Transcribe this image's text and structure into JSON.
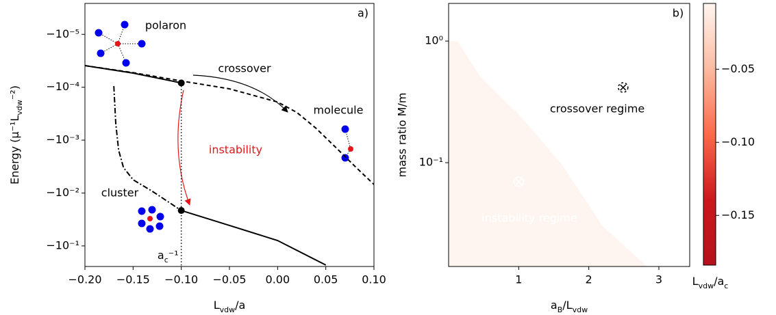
{
  "chart_data": [
    {
      "type": "line",
      "xlabel": [
        "L",
        "vdw",
        "/a"
      ],
      "ylabel": [
        "Energy (μ⁻¹L",
        "vdw",
        "⁻²)"
      ],
      "xlim": [
        -0.2,
        0.1
      ],
      "ylim": [
        -0.245,
        -2.6e-06
      ],
      "yscale": "log",
      "xticks": [
        {
          "value": -0.2,
          "label": "−0.20"
        },
        {
          "value": -0.15,
          "label": "−0.15"
        },
        {
          "value": -0.1,
          "label": "−0.10"
        },
        {
          "value": -0.05,
          "label": "−0.05"
        },
        {
          "value": 0,
          "label": "0.00"
        },
        {
          "value": 0.05,
          "label": "0.05"
        },
        {
          "value": 0.1,
          "label": "0.10"
        }
      ],
      "yticks": [
        {
          "value": -1e-05,
          "label": "−10⁻⁵"
        },
        {
          "value": -0.0001,
          "label": "−10⁻⁴"
        },
        {
          "value": -0.001,
          "label": "−10⁻³"
        },
        {
          "value": -0.01,
          "label": "−10⁻²"
        },
        {
          "value": -0.1,
          "label": "−10⁻¹"
        }
      ],
      "series": [
        {
          "style": "dashed",
          "color": "#000000",
          "x": [
            -0.2,
            -0.15,
            -0.1,
            -0.05,
            0,
            0.02,
            0.04,
            0.06,
            0.08,
            0.1
          ],
          "y": [
            -3.9e-05,
            -5.3e-05,
            -7.6e-05,
            -0.000107,
            -0.00019,
            -0.0003,
            -0.0006,
            -0.00135,
            -0.0031,
            -0.0069
          ]
        },
        {
          "style": "solid",
          "color": "#000000",
          "x": [
            -0.2,
            -0.15,
            -0.1
          ],
          "y": [
            -3.9e-05,
            -5.4e-05,
            -8.3e-05
          ]
        },
        {
          "style": "solid",
          "color": "#000000",
          "x": [
            -0.1,
            -0.05,
            0,
            0.05
          ],
          "y": [
            -0.0214,
            -0.041,
            -0.079,
            -0.23
          ]
        },
        {
          "style": "dashdot",
          "color": "#000000",
          "x": [
            -0.17,
            -0.168,
            -0.165,
            -0.16,
            -0.15,
            -0.13,
            -0.1
          ],
          "y": [
            -9.5e-05,
            -0.00048,
            -0.00155,
            -0.0033,
            -0.0056,
            -0.0093,
            -0.0214
          ]
        }
      ],
      "points": {
        "x": [
          -0.1,
          -0.1
        ],
        "y": [
          -8.3e-05,
          -0.0214
        ],
        "color": "#000000"
      },
      "vline": -0.1,
      "vline_label": [
        "a",
        "c",
        "⁻¹"
      ],
      "annotations": [
        "a)",
        "polaron",
        "crossover",
        "molecule",
        "instability",
        "cluster"
      ]
    },
    {
      "type": "heatmap",
      "xlabel": [
        "a",
        "B",
        "/L",
        "vdw"
      ],
      "ylabel": "mass ratio M/m",
      "xlim": [
        0.0,
        3.44
      ],
      "ylim": [
        0.014,
        2.04
      ],
      "yscale": "log",
      "xticks": [
        1,
        2,
        3
      ],
      "yticks": [
        {
          "value": 1,
          "label": "10⁰"
        },
        {
          "value": 0.1,
          "label": "10⁻¹"
        }
      ],
      "boundary": {
        "x": [
          0.13,
          0.44,
          1.03,
          1.61,
          2.2,
          2.83
        ],
        "y": [
          1.0,
          0.52,
          0.24,
          0.098,
          0.03,
          0.014
        ]
      },
      "colormap": [
        "#fff5f0",
        "#fcbba1",
        "#fb6a4a",
        "#cb181d",
        "#b5121b"
      ],
      "clim": [
        -0.184,
        -0.005
      ],
      "cticks": [
        {
          "value": -0.05,
          "label": "−0.05"
        },
        {
          "value": -0.1,
          "label": "−0.10"
        },
        {
          "value": -0.15,
          "label": "−0.15"
        }
      ],
      "clabel": [
        "L",
        "vdw",
        "/a",
        "c"
      ],
      "markers": {
        "x": [
          1.0,
          2.49
        ],
        "y": [
          0.0697,
          0.415
        ],
        "color": [
          "#ffffff",
          "#000000"
        ]
      },
      "annotations": [
        "b)",
        "crossover regime",
        "instability regime"
      ]
    }
  ]
}
